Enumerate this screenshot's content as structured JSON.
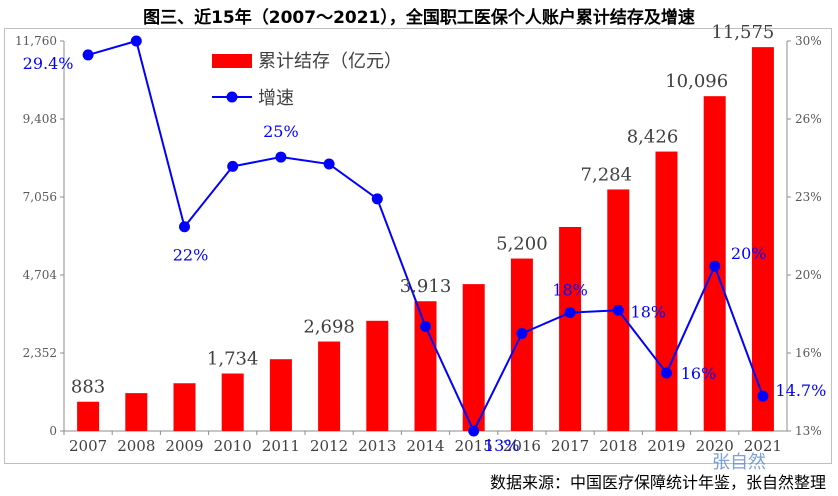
{
  "header": {
    "title": "图三、近15年（2007～2021），全国职工医保个人账户累计结存及增速"
  },
  "footer": {
    "source": "数据来源：中国医疗保障统计年鉴，张自然整理",
    "watermark": "张自然"
  },
  "chart_data": {
    "type": "bar",
    "categories": [
      "2007",
      "2008",
      "2009",
      "2010",
      "2011",
      "2012",
      "2013",
      "2014",
      "2015",
      "2016",
      "2017",
      "2018",
      "2019",
      "2020",
      "2021"
    ],
    "series": [
      {
        "name": "累计结存（亿元）",
        "kind": "bar",
        "axis": "left",
        "color": "#ff0000",
        "values": [
          883,
          1142,
          1440,
          1734,
          2165,
          2698,
          3323,
          3913,
          4429,
          5200,
          6152,
          7284,
          8426,
          10096,
          11575
        ]
      },
      {
        "name": "增速",
        "kind": "line",
        "axis": "right",
        "color": "#0000ff",
        "values": [
          29.4,
          30.0,
          22.0,
          24.6,
          25.0,
          24.7,
          23.2,
          17.7,
          13.2,
          17.4,
          18.3,
          18.4,
          15.7,
          20.3,
          14.7
        ]
      }
    ],
    "bar_labels": [
      {
        "index": 0,
        "text": "883"
      },
      {
        "index": 3,
        "text": "1,734"
      },
      {
        "index": 5,
        "text": "2,698"
      },
      {
        "index": 7,
        "text": "3,913"
      },
      {
        "index": 9,
        "text": "5,200"
      },
      {
        "index": 11,
        "text": "7,284"
      },
      {
        "index": 12,
        "text": "8,426"
      },
      {
        "index": 13,
        "text": "10,096"
      },
      {
        "index": 14,
        "text": "11,575"
      }
    ],
    "line_labels": [
      {
        "index": 0,
        "text": "29.4%"
      },
      {
        "index": 2,
        "text": "22%"
      },
      {
        "index": 4,
        "text": "25%"
      },
      {
        "index": 8,
        "text": "13%"
      },
      {
        "index": 10,
        "text": "18%"
      },
      {
        "index": 11,
        "text": "18%"
      },
      {
        "index": 12,
        "text": "16%"
      },
      {
        "index": 13,
        "text": "20%"
      },
      {
        "index": 14,
        "text": "14.7%"
      }
    ],
    "y_left": {
      "min": 0,
      "max": 11760,
      "ticks": [
        "0",
        "2,352",
        "4,704",
        "7,056",
        "9,408",
        "11,760"
      ]
    },
    "y_right": {
      "min": 13.2,
      "max": 30.0,
      "ticks": [
        "13%",
        "16%",
        "20%",
        "23%",
        "26%",
        "30%"
      ]
    },
    "legend": {
      "position": "top-left",
      "entries": [
        "累计结存（亿元）",
        "增速"
      ]
    },
    "grid": false
  }
}
